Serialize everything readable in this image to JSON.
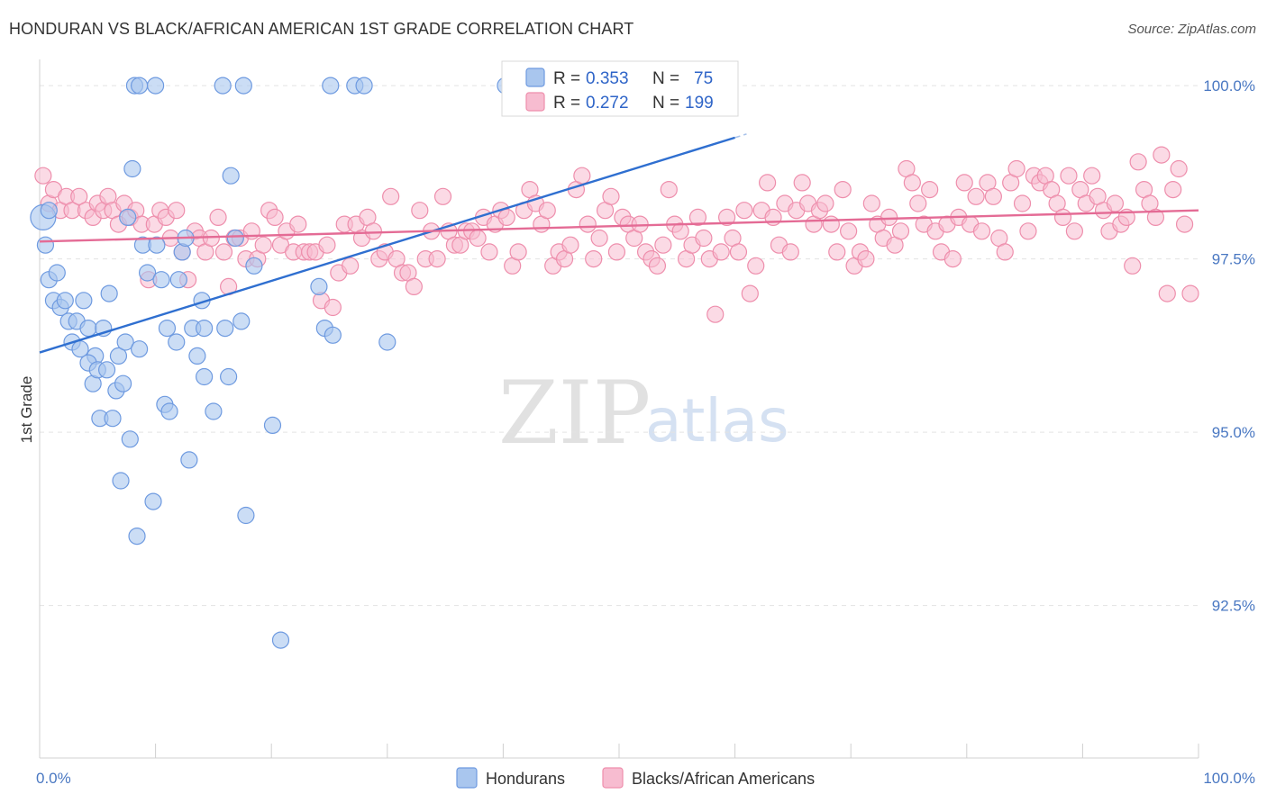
{
  "title": "HONDURAN VS BLACK/AFRICAN AMERICAN 1ST GRADE CORRELATION CHART",
  "source": "Source: ZipAtlas.com",
  "watermark": {
    "part1": "ZIP",
    "part2": "atlas"
  },
  "chart_data": {
    "type": "scatter",
    "ylabel": "1st Grade",
    "xlim": [
      0,
      100
    ],
    "ylim": [
      90.3,
      100.3
    ],
    "x_ticks": [
      {
        "v": 0,
        "label": "0.0%"
      },
      {
        "v": 100,
        "label": "100.0%"
      }
    ],
    "y_ticks": [
      {
        "v": 100,
        "label": "100.0%"
      },
      {
        "v": 97.5,
        "label": "97.5%"
      },
      {
        "v": 95,
        "label": "95.0%"
      },
      {
        "v": 92.5,
        "label": "92.5%"
      }
    ],
    "grid": true,
    "legend_position": "top-center",
    "colors": {
      "hondurans_fill": "#a9c6ee",
      "hondurans_stroke": "#6e9ae0",
      "hondurans_line": "#2f6fd0",
      "black_fill": "#f7bcd0",
      "black_stroke": "#ee8eac",
      "black_line": "#e46b95"
    },
    "legend": [
      {
        "r_label": "R = ",
        "r_value": "0.353",
        "n_label": "N = ",
        "n_value": "75"
      },
      {
        "r_label": "R = ",
        "r_value": "0.272",
        "n_label": "N = ",
        "n_value": "199"
      }
    ],
    "series": [
      {
        "name": "Hondurans",
        "trend": {
          "x0": 0,
          "y0": 96.15,
          "x1": 60,
          "y1": 99.25,
          "x_end": 61.0
        },
        "points": [
          [
            0.3,
            98.1
          ],
          [
            0.5,
            97.7
          ],
          [
            0.8,
            97.2
          ],
          [
            1.2,
            96.9
          ],
          [
            1.5,
            97.3
          ],
          [
            1.8,
            96.8
          ],
          [
            2.2,
            96.9
          ],
          [
            2.5,
            96.6
          ],
          [
            2.8,
            96.3
          ],
          [
            3.2,
            96.6
          ],
          [
            3.5,
            96.2
          ],
          [
            3.8,
            96.9
          ],
          [
            4.2,
            96.5
          ],
          [
            4.8,
            96.1
          ],
          [
            4.2,
            96.0
          ],
          [
            4.6,
            95.7
          ],
          [
            5.0,
            95.9
          ],
          [
            5.5,
            96.5
          ],
          [
            5.2,
            95.2
          ],
          [
            5.8,
            95.9
          ],
          [
            6.0,
            97.0
          ],
          [
            6.3,
            95.2
          ],
          [
            6.6,
            95.6
          ],
          [
            6.8,
            96.1
          ],
          [
            7.0,
            94.3
          ],
          [
            7.2,
            95.7
          ],
          [
            7.4,
            96.3
          ],
          [
            7.6,
            98.1
          ],
          [
            7.8,
            94.9
          ],
          [
            8.0,
            98.8
          ],
          [
            8.4,
            93.5
          ],
          [
            8.6,
            96.2
          ],
          [
            8.9,
            97.7
          ],
          [
            9.3,
            97.3
          ],
          [
            9.8,
            94.0
          ],
          [
            10.1,
            97.7
          ],
          [
            10.5,
            97.2
          ],
          [
            10.8,
            95.4
          ],
          [
            11.0,
            96.5
          ],
          [
            11.2,
            95.3
          ],
          [
            11.8,
            96.3
          ],
          [
            12.0,
            97.2
          ],
          [
            12.3,
            97.6
          ],
          [
            12.6,
            97.8
          ],
          [
            12.9,
            94.6
          ],
          [
            13.2,
            96.5
          ],
          [
            13.6,
            96.1
          ],
          [
            14.0,
            96.9
          ],
          [
            14.2,
            95.8
          ],
          [
            14.2,
            96.5
          ],
          [
            15.0,
            95.3
          ],
          [
            16.0,
            96.5
          ],
          [
            16.3,
            95.8
          ],
          [
            16.5,
            98.7
          ],
          [
            16.9,
            97.8
          ],
          [
            17.4,
            96.6
          ],
          [
            17.8,
            93.8
          ],
          [
            18.5,
            97.4
          ],
          [
            20.1,
            95.1
          ],
          [
            20.8,
            92.0
          ],
          [
            24.1,
            97.1
          ],
          [
            24.6,
            96.5
          ],
          [
            25.3,
            96.4
          ],
          [
            30.0,
            96.3
          ],
          [
            8.2,
            100.0
          ],
          [
            8.6,
            100.0
          ],
          [
            10.0,
            100.0
          ],
          [
            15.8,
            100.0
          ],
          [
            17.6,
            100.0
          ],
          [
            25.1,
            100.0
          ],
          [
            27.2,
            100.0
          ],
          [
            28.0,
            100.0
          ],
          [
            40.2,
            100.0
          ],
          [
            42.6,
            100.0
          ],
          [
            0.8,
            98.2
          ]
        ]
      },
      {
        "name": "Blacks/African Americans",
        "trend": {
          "x0": 0,
          "y0": 97.75,
          "x1": 100,
          "y1": 98.2,
          "x_end": 100
        },
        "points": [
          [
            0.3,
            98.7
          ],
          [
            0.8,
            98.3
          ],
          [
            1.2,
            98.5
          ],
          [
            1.8,
            98.2
          ],
          [
            2.3,
            98.4
          ],
          [
            2.8,
            98.2
          ],
          [
            3.4,
            98.4
          ],
          [
            4.0,
            98.2
          ],
          [
            4.6,
            98.1
          ],
          [
            5.0,
            98.3
          ],
          [
            5.5,
            98.2
          ],
          [
            5.9,
            98.4
          ],
          [
            6.3,
            98.2
          ],
          [
            6.8,
            98.0
          ],
          [
            7.3,
            98.3
          ],
          [
            7.8,
            98.1
          ],
          [
            8.3,
            98.2
          ],
          [
            8.8,
            98.0
          ],
          [
            9.4,
            97.2
          ],
          [
            9.9,
            98.0
          ],
          [
            10.4,
            98.2
          ],
          [
            10.9,
            98.1
          ],
          [
            11.3,
            97.8
          ],
          [
            11.8,
            98.2
          ],
          [
            12.3,
            97.6
          ],
          [
            12.8,
            97.2
          ],
          [
            13.4,
            97.9
          ],
          [
            13.8,
            97.8
          ],
          [
            14.3,
            97.6
          ],
          [
            14.8,
            97.8
          ],
          [
            15.4,
            98.1
          ],
          [
            15.9,
            97.6
          ],
          [
            16.3,
            97.1
          ],
          [
            16.8,
            97.8
          ],
          [
            17.3,
            97.8
          ],
          [
            17.8,
            97.5
          ],
          [
            18.3,
            97.9
          ],
          [
            18.8,
            97.5
          ],
          [
            19.3,
            97.7
          ],
          [
            19.8,
            98.2
          ],
          [
            20.3,
            98.1
          ],
          [
            20.8,
            97.7
          ],
          [
            21.3,
            97.9
          ],
          [
            21.9,
            97.6
          ],
          [
            22.3,
            98.0
          ],
          [
            22.8,
            97.6
          ],
          [
            23.3,
            97.6
          ],
          [
            23.8,
            97.6
          ],
          [
            24.3,
            96.9
          ],
          [
            24.8,
            97.7
          ],
          [
            25.3,
            96.8
          ],
          [
            25.8,
            97.3
          ],
          [
            26.3,
            98.0
          ],
          [
            26.8,
            97.4
          ],
          [
            27.3,
            98.0
          ],
          [
            27.8,
            97.8
          ],
          [
            28.3,
            98.1
          ],
          [
            28.8,
            97.9
          ],
          [
            29.3,
            97.5
          ],
          [
            29.8,
            97.6
          ],
          [
            30.3,
            98.4
          ],
          [
            30.8,
            97.5
          ],
          [
            31.3,
            97.3
          ],
          [
            31.8,
            97.3
          ],
          [
            32.3,
            97.1
          ],
          [
            32.8,
            98.2
          ],
          [
            33.3,
            97.5
          ],
          [
            33.8,
            97.9
          ],
          [
            34.3,
            97.5
          ],
          [
            34.8,
            98.4
          ],
          [
            35.3,
            97.9
          ],
          [
            35.8,
            97.7
          ],
          [
            36.3,
            97.7
          ],
          [
            36.8,
            97.9
          ],
          [
            37.3,
            97.9
          ],
          [
            37.8,
            97.8
          ],
          [
            38.3,
            98.1
          ],
          [
            38.8,
            97.6
          ],
          [
            39.3,
            98.0
          ],
          [
            39.8,
            98.2
          ],
          [
            40.3,
            98.1
          ],
          [
            40.8,
            97.4
          ],
          [
            41.3,
            97.6
          ],
          [
            41.8,
            98.2
          ],
          [
            42.3,
            98.5
          ],
          [
            42.8,
            98.3
          ],
          [
            43.3,
            98.0
          ],
          [
            43.8,
            98.2
          ],
          [
            44.3,
            97.4
          ],
          [
            44.8,
            97.6
          ],
          [
            45.3,
            97.5
          ],
          [
            45.8,
            97.7
          ],
          [
            46.3,
            98.5
          ],
          [
            46.8,
            98.7
          ],
          [
            47.3,
            98.0
          ],
          [
            47.8,
            97.5
          ],
          [
            48.3,
            97.8
          ],
          [
            48.8,
            98.2
          ],
          [
            49.3,
            98.4
          ],
          [
            49.8,
            97.6
          ],
          [
            50.3,
            98.1
          ],
          [
            50.8,
            98.0
          ],
          [
            51.3,
            97.8
          ],
          [
            51.8,
            98.0
          ],
          [
            52.3,
            97.6
          ],
          [
            52.8,
            97.5
          ],
          [
            53.3,
            97.4
          ],
          [
            53.8,
            97.7
          ],
          [
            54.3,
            98.5
          ],
          [
            54.8,
            98.0
          ],
          [
            55.3,
            97.9
          ],
          [
            55.8,
            97.5
          ],
          [
            56.3,
            97.7
          ],
          [
            56.8,
            98.1
          ],
          [
            57.3,
            97.8
          ],
          [
            57.8,
            97.5
          ],
          [
            58.3,
            96.7
          ],
          [
            58.8,
            97.6
          ],
          [
            59.3,
            98.1
          ],
          [
            59.8,
            97.8
          ],
          [
            60.3,
            97.6
          ],
          [
            60.8,
            98.2
          ],
          [
            61.3,
            97.0
          ],
          [
            61.8,
            97.4
          ],
          [
            62.3,
            98.2
          ],
          [
            62.8,
            98.6
          ],
          [
            63.3,
            98.1
          ],
          [
            63.8,
            97.7
          ],
          [
            64.3,
            98.3
          ],
          [
            64.8,
            97.6
          ],
          [
            65.3,
            98.2
          ],
          [
            65.8,
            98.6
          ],
          [
            66.3,
            98.3
          ],
          [
            66.8,
            98.0
          ],
          [
            67.3,
            98.2
          ],
          [
            67.8,
            98.3
          ],
          [
            68.3,
            98.0
          ],
          [
            68.8,
            97.6
          ],
          [
            69.3,
            98.5
          ],
          [
            69.8,
            97.9
          ],
          [
            70.3,
            97.4
          ],
          [
            70.8,
            97.6
          ],
          [
            71.3,
            97.5
          ],
          [
            71.8,
            98.3
          ],
          [
            72.3,
            98.0
          ],
          [
            72.8,
            97.8
          ],
          [
            73.3,
            98.1
          ],
          [
            73.8,
            97.7
          ],
          [
            74.3,
            97.9
          ],
          [
            74.8,
            98.8
          ],
          [
            75.3,
            98.6
          ],
          [
            75.8,
            98.3
          ],
          [
            76.3,
            98.0
          ],
          [
            76.8,
            98.5
          ],
          [
            77.3,
            97.9
          ],
          [
            77.8,
            97.6
          ],
          [
            78.3,
            98.0
          ],
          [
            78.8,
            97.5
          ],
          [
            79.3,
            98.1
          ],
          [
            79.8,
            98.6
          ],
          [
            80.3,
            98.0
          ],
          [
            80.8,
            98.4
          ],
          [
            81.3,
            97.9
          ],
          [
            81.8,
            98.6
          ],
          [
            82.3,
            98.4
          ],
          [
            82.8,
            97.8
          ],
          [
            83.3,
            97.6
          ],
          [
            83.8,
            98.6
          ],
          [
            84.3,
            98.8
          ],
          [
            84.8,
            98.3
          ],
          [
            85.3,
            97.9
          ],
          [
            85.8,
            98.7
          ],
          [
            86.3,
            98.6
          ],
          [
            86.8,
            98.7
          ],
          [
            87.3,
            98.5
          ],
          [
            87.8,
            98.3
          ],
          [
            88.3,
            98.1
          ],
          [
            88.8,
            98.7
          ],
          [
            89.3,
            97.9
          ],
          [
            89.8,
            98.5
          ],
          [
            90.3,
            98.3
          ],
          [
            90.8,
            98.7
          ],
          [
            91.3,
            98.4
          ],
          [
            91.8,
            98.2
          ],
          [
            92.3,
            97.9
          ],
          [
            92.8,
            98.3
          ],
          [
            93.3,
            98.0
          ],
          [
            93.8,
            98.1
          ],
          [
            94.3,
            97.4
          ],
          [
            94.8,
            98.9
          ],
          [
            95.3,
            98.5
          ],
          [
            95.8,
            98.3
          ],
          [
            96.3,
            98.1
          ],
          [
            96.8,
            99.0
          ],
          [
            97.3,
            97.0
          ],
          [
            97.8,
            98.5
          ],
          [
            98.3,
            98.8
          ],
          [
            98.8,
            98.0
          ],
          [
            99.3,
            97.0
          ]
        ]
      }
    ]
  },
  "bottom_legend": [
    {
      "label": "Hondurans"
    },
    {
      "label": "Blacks/African Americans"
    }
  ]
}
